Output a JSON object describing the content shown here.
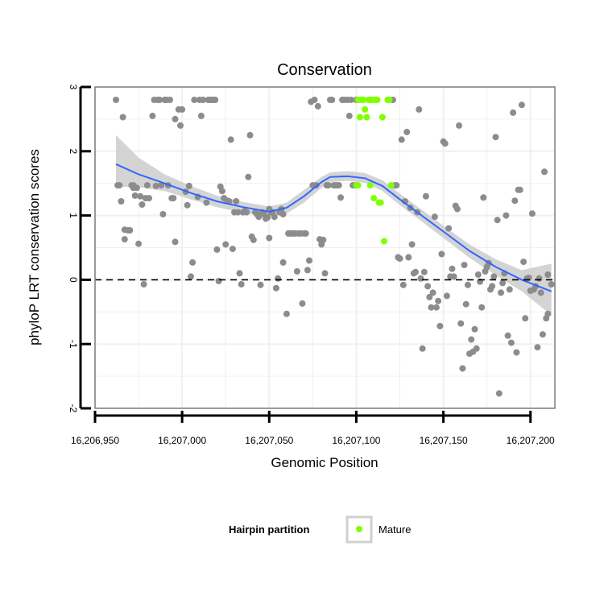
{
  "chart_data": {
    "type": "scatter",
    "title": "Conservation",
    "xlabel": "Genomic Position",
    "ylabel": "phyloP LRT conservation scores",
    "xlim": [
      16206950,
      16207214
    ],
    "ylim": [
      -2,
      3
    ],
    "x_ticks": [
      16206950,
      16207000,
      16207050,
      16207100,
      16207150,
      16207200
    ],
    "x_tick_labels": [
      "16,206,950",
      "16,207,000",
      "16,207,050",
      "16,207,100",
      "16,207,150",
      "16,207,200"
    ],
    "y_ticks": [
      -2,
      -1,
      0,
      1,
      2,
      3
    ],
    "y_tick_labels": [
      "-2",
      "-1",
      "0",
      "1",
      "2",
      "3"
    ],
    "reference_line": {
      "y": 0,
      "style": "dashed"
    },
    "legend": {
      "title": "Hairpin partition",
      "entries": [
        "Mature"
      ],
      "position": "bottom"
    },
    "colors": {
      "other": "#8c8c8c",
      "mature": "#7fff00",
      "smooth": "#3366ff",
      "ribbon": "#cccccc",
      "panel_grid": "#f0f0f0",
      "border": "#7f7f7f"
    },
    "smooth_line": {
      "x": [
        16206962,
        16206975,
        16206990,
        16207005,
        16207020,
        16207035,
        16207050,
        16207060,
        16207070,
        16207080,
        16207085,
        16207095,
        16207105,
        16207115,
        16207125,
        16207135,
        16207150,
        16207165,
        16207180,
        16207195,
        16207212
      ],
      "y": [
        1.8,
        1.64,
        1.5,
        1.35,
        1.22,
        1.13,
        1.06,
        1.12,
        1.3,
        1.52,
        1.6,
        1.61,
        1.58,
        1.46,
        1.25,
        1.05,
        0.75,
        0.45,
        0.2,
        0.0,
        -0.18
      ],
      "lower": [
        1.45,
        1.44,
        1.38,
        1.25,
        1.13,
        1.04,
        0.98,
        1.03,
        1.2,
        1.43,
        1.52,
        1.54,
        1.51,
        1.38,
        1.16,
        0.96,
        0.65,
        0.34,
        0.07,
        -0.18,
        -0.55
      ],
      "upper": [
        2.25,
        1.9,
        1.64,
        1.46,
        1.31,
        1.21,
        1.14,
        1.2,
        1.4,
        1.6,
        1.67,
        1.69,
        1.66,
        1.55,
        1.34,
        1.14,
        0.84,
        0.55,
        0.32,
        0.15,
        0.25
      ]
    },
    "series": [
      {
        "name": "Other",
        "points": [
          [
            16206962,
            2.8
          ],
          [
            16206963,
            1.47
          ],
          [
            16206964,
            1.47
          ],
          [
            16206965,
            1.22
          ],
          [
            16206966,
            2.53
          ],
          [
            16206967,
            0.63
          ],
          [
            16206967,
            0.78
          ],
          [
            16206969,
            0.77
          ],
          [
            16206970,
            0.77
          ],
          [
            16206971,
            1.47
          ],
          [
            16206972,
            1.47
          ],
          [
            16206972,
            1.43
          ],
          [
            16206973,
            1.31
          ],
          [
            16206974,
            1.43
          ],
          [
            16206975,
            0.56
          ],
          [
            16206976,
            1.3
          ],
          [
            16206977,
            1.17
          ],
          [
            16206978,
            -0.07
          ],
          [
            16206979,
            1.27
          ],
          [
            16206980,
            1.47
          ],
          [
            16206981,
            1.27
          ],
          [
            16206983,
            2.55
          ],
          [
            16206984,
            2.8
          ],
          [
            16206985,
            1.46
          ],
          [
            16206986,
            2.8
          ],
          [
            16206987,
            2.8
          ],
          [
            16206988,
            1.47
          ],
          [
            16206989,
            1.02
          ],
          [
            16206990,
            2.8
          ],
          [
            16206991,
            2.8
          ],
          [
            16206992,
            1.47
          ],
          [
            16206993,
            2.8
          ],
          [
            16206994,
            1.27
          ],
          [
            16206995,
            1.27
          ],
          [
            16206996,
            2.5
          ],
          [
            16206996,
            0.59
          ],
          [
            16206998,
            2.65
          ],
          [
            16206999,
            2.4
          ],
          [
            16207000,
            2.65
          ],
          [
            16207002,
            1.37
          ],
          [
            16207003,
            1.16
          ],
          [
            16207004,
            1.46
          ],
          [
            16207005,
            0.05
          ],
          [
            16207006,
            0.27
          ],
          [
            16207007,
            2.8
          ],
          [
            16207009,
            1.29
          ],
          [
            16207010,
            2.8
          ],
          [
            16207011,
            2.55
          ],
          [
            16207012,
            2.8
          ],
          [
            16207014,
            1.2
          ],
          [
            16207015,
            2.8
          ],
          [
            16207016,
            2.8
          ],
          [
            16207017,
            2.8
          ],
          [
            16207018,
            2.8
          ],
          [
            16207019,
            2.8
          ],
          [
            16207020,
            0.47
          ],
          [
            16207021,
            -0.02
          ],
          [
            16207022,
            1.45
          ],
          [
            16207023,
            1.38
          ],
          [
            16207024,
            1.27
          ],
          [
            16207025,
            0.55
          ],
          [
            16207026,
            1.23
          ],
          [
            16207027,
            1.22
          ],
          [
            16207028,
            2.18
          ],
          [
            16207029,
            0.48
          ],
          [
            16207030,
            1.05
          ],
          [
            16207031,
            1.22
          ],
          [
            16207032,
            1.05
          ],
          [
            16207033,
            0.1
          ],
          [
            16207034,
            -0.07
          ],
          [
            16207035,
            1.05
          ],
          [
            16207036,
            1.07
          ],
          [
            16207037,
            1.05
          ],
          [
            16207038,
            1.6
          ],
          [
            16207039,
            2.25
          ],
          [
            16207040,
            0.67
          ],
          [
            16207041,
            0.62
          ],
          [
            16207042,
            1.05
          ],
          [
            16207043,
            1.02
          ],
          [
            16207044,
            0.98
          ],
          [
            16207045,
            -0.08
          ],
          [
            16207046,
            1.05
          ],
          [
            16207047,
            1.02
          ],
          [
            16207048,
            0.95
          ],
          [
            16207049,
            0.97
          ],
          [
            16207050,
            0.65
          ],
          [
            16207050,
            1.1
          ],
          [
            16207051,
            1.05
          ],
          [
            16207052,
            1.05
          ],
          [
            16207053,
            0.98
          ],
          [
            16207054,
            -0.13
          ],
          [
            16207055,
            0.02
          ],
          [
            16207056,
            1.05
          ],
          [
            16207057,
            1.1
          ],
          [
            16207058,
            1.02
          ],
          [
            16207058,
            0.27
          ],
          [
            16207060,
            -0.53
          ],
          [
            16207061,
            0.72
          ],
          [
            16207062,
            0.72
          ],
          [
            16207063,
            0.72
          ],
          [
            16207064,
            0.72
          ],
          [
            16207065,
            0.72
          ],
          [
            16207066,
            0.13
          ],
          [
            16207067,
            0.72
          ],
          [
            16207068,
            0.72
          ],
          [
            16207069,
            -0.37
          ],
          [
            16207070,
            0.72
          ],
          [
            16207071,
            0.72
          ],
          [
            16207072,
            0.15
          ],
          [
            16207073,
            0.3
          ],
          [
            16207074,
            2.77
          ],
          [
            16207075,
            1.47
          ],
          [
            16207076,
            2.8
          ],
          [
            16207077,
            1.47
          ],
          [
            16207078,
            2.7
          ],
          [
            16207079,
            0.63
          ],
          [
            16207080,
            0.55
          ],
          [
            16207081,
            0.62
          ],
          [
            16207082,
            0.1
          ],
          [
            16207083,
            1.47
          ],
          [
            16207084,
            1.47
          ],
          [
            16207085,
            2.8
          ],
          [
            16207086,
            2.8
          ],
          [
            16207087,
            1.47
          ],
          [
            16207088,
            1.47
          ],
          [
            16207089,
            1.47
          ],
          [
            16207090,
            1.47
          ],
          [
            16207091,
            1.28
          ],
          [
            16207092,
            2.8
          ],
          [
            16207093,
            2.8
          ],
          [
            16207095,
            2.8
          ],
          [
            16207096,
            2.55
          ],
          [
            16207097,
            2.8
          ],
          [
            16207098,
            1.47
          ],
          [
            16207099,
            1.47
          ],
          [
            16207100,
            2.8
          ],
          [
            16207121,
            2.8
          ],
          [
            16207122,
            1.47
          ],
          [
            16207123,
            1.47
          ],
          [
            16207124,
            0.35
          ],
          [
            16207125,
            0.33
          ],
          [
            16207126,
            2.18
          ],
          [
            16207127,
            -0.08
          ],
          [
            16207128,
            1.22
          ],
          [
            16207129,
            2.3
          ],
          [
            16207130,
            0.35
          ],
          [
            16207131,
            1.12
          ],
          [
            16207132,
            0.55
          ],
          [
            16207133,
            0.1
          ],
          [
            16207134,
            0.12
          ],
          [
            16207135,
            1.05
          ],
          [
            16207136,
            2.65
          ],
          [
            16207137,
            0.02
          ],
          [
            16207138,
            -1.07
          ],
          [
            16207139,
            0.12
          ],
          [
            16207140,
            1.3
          ],
          [
            16207141,
            -0.1
          ],
          [
            16207142,
            -0.27
          ],
          [
            16207143,
            -0.43
          ],
          [
            16207144,
            -0.2
          ],
          [
            16207145,
            0.98
          ],
          [
            16207146,
            -0.43
          ],
          [
            16207147,
            -0.33
          ],
          [
            16207148,
            -0.72
          ],
          [
            16207149,
            0.4
          ],
          [
            16207150,
            2.15
          ],
          [
            16207151,
            2.12
          ],
          [
            16207152,
            -0.25
          ],
          [
            16207153,
            0.8
          ],
          [
            16207154,
            0.05
          ],
          [
            16207155,
            0.17
          ],
          [
            16207156,
            0.05
          ],
          [
            16207157,
            1.15
          ],
          [
            16207158,
            1.1
          ],
          [
            16207159,
            2.4
          ],
          [
            16207160,
            -0.68
          ],
          [
            16207161,
            -1.38
          ],
          [
            16207162,
            0.23
          ],
          [
            16207163,
            -0.38
          ],
          [
            16207164,
            -0.08
          ],
          [
            16207165,
            -1.15
          ],
          [
            16207166,
            -0.93
          ],
          [
            16207167,
            -1.12
          ],
          [
            16207168,
            -0.77
          ],
          [
            16207169,
            -1.07
          ],
          [
            16207170,
            0.08
          ],
          [
            16207171,
            -0.03
          ],
          [
            16207172,
            -0.43
          ],
          [
            16207173,
            1.28
          ],
          [
            16207174,
            0.13
          ],
          [
            16207175,
            0.2
          ],
          [
            16207176,
            0.26
          ],
          [
            16207177,
            -0.15
          ],
          [
            16207178,
            -0.1
          ],
          [
            16207179,
            0.05
          ],
          [
            16207180,
            2.22
          ],
          [
            16207181,
            0.93
          ],
          [
            16207182,
            -1.77
          ],
          [
            16207183,
            -0.2
          ],
          [
            16207184,
            -0.05
          ],
          [
            16207185,
            0.1
          ],
          [
            16207186,
            1.0
          ],
          [
            16207187,
            -0.87
          ],
          [
            16207188,
            -0.15
          ],
          [
            16207189,
            -0.98
          ],
          [
            16207190,
            2.6
          ],
          [
            16207191,
            1.23
          ],
          [
            16207192,
            -1.13
          ],
          [
            16207193,
            1.4
          ],
          [
            16207194,
            1.4
          ],
          [
            16207195,
            2.72
          ],
          [
            16207196,
            0.28
          ],
          [
            16207197,
            -0.6
          ],
          [
            16207198,
            0.02
          ],
          [
            16207199,
            0.03
          ],
          [
            16207200,
            -0.17
          ],
          [
            16207201,
            1.03
          ],
          [
            16207202,
            -0.15
          ],
          [
            16207203,
            -0.1
          ],
          [
            16207204,
            -1.05
          ],
          [
            16207205,
            0.02
          ],
          [
            16207206,
            -0.2
          ],
          [
            16207207,
            -0.85
          ],
          [
            16207208,
            1.68
          ],
          [
            16207209,
            -0.6
          ],
          [
            16207210,
            0.08
          ],
          [
            16207210,
            -0.53
          ],
          [
            16207212,
            -0.07
          ]
        ]
      },
      {
        "name": "Mature",
        "points": [
          [
            16207101,
            2.8
          ],
          [
            16207102,
            2.53
          ],
          [
            16207103,
            2.8
          ],
          [
            16207104,
            2.8
          ],
          [
            16207105,
            2.65
          ],
          [
            16207106,
            2.53
          ],
          [
            16207107,
            2.8
          ],
          [
            16207108,
            2.8
          ],
          [
            16207109,
            2.8
          ],
          [
            16207110,
            1.27
          ],
          [
            16207111,
            2.8
          ],
          [
            16207112,
            2.8
          ],
          [
            16207113,
            1.2
          ],
          [
            16207114,
            1.2
          ],
          [
            16207115,
            2.53
          ],
          [
            16207116,
            0.6
          ],
          [
            16207118,
            2.8
          ],
          [
            16207119,
            2.8
          ],
          [
            16207120,
            1.47
          ],
          [
            16207100,
            1.47
          ],
          [
            16207101,
            1.47
          ],
          [
            16207108,
            1.47
          ]
        ]
      }
    ]
  }
}
